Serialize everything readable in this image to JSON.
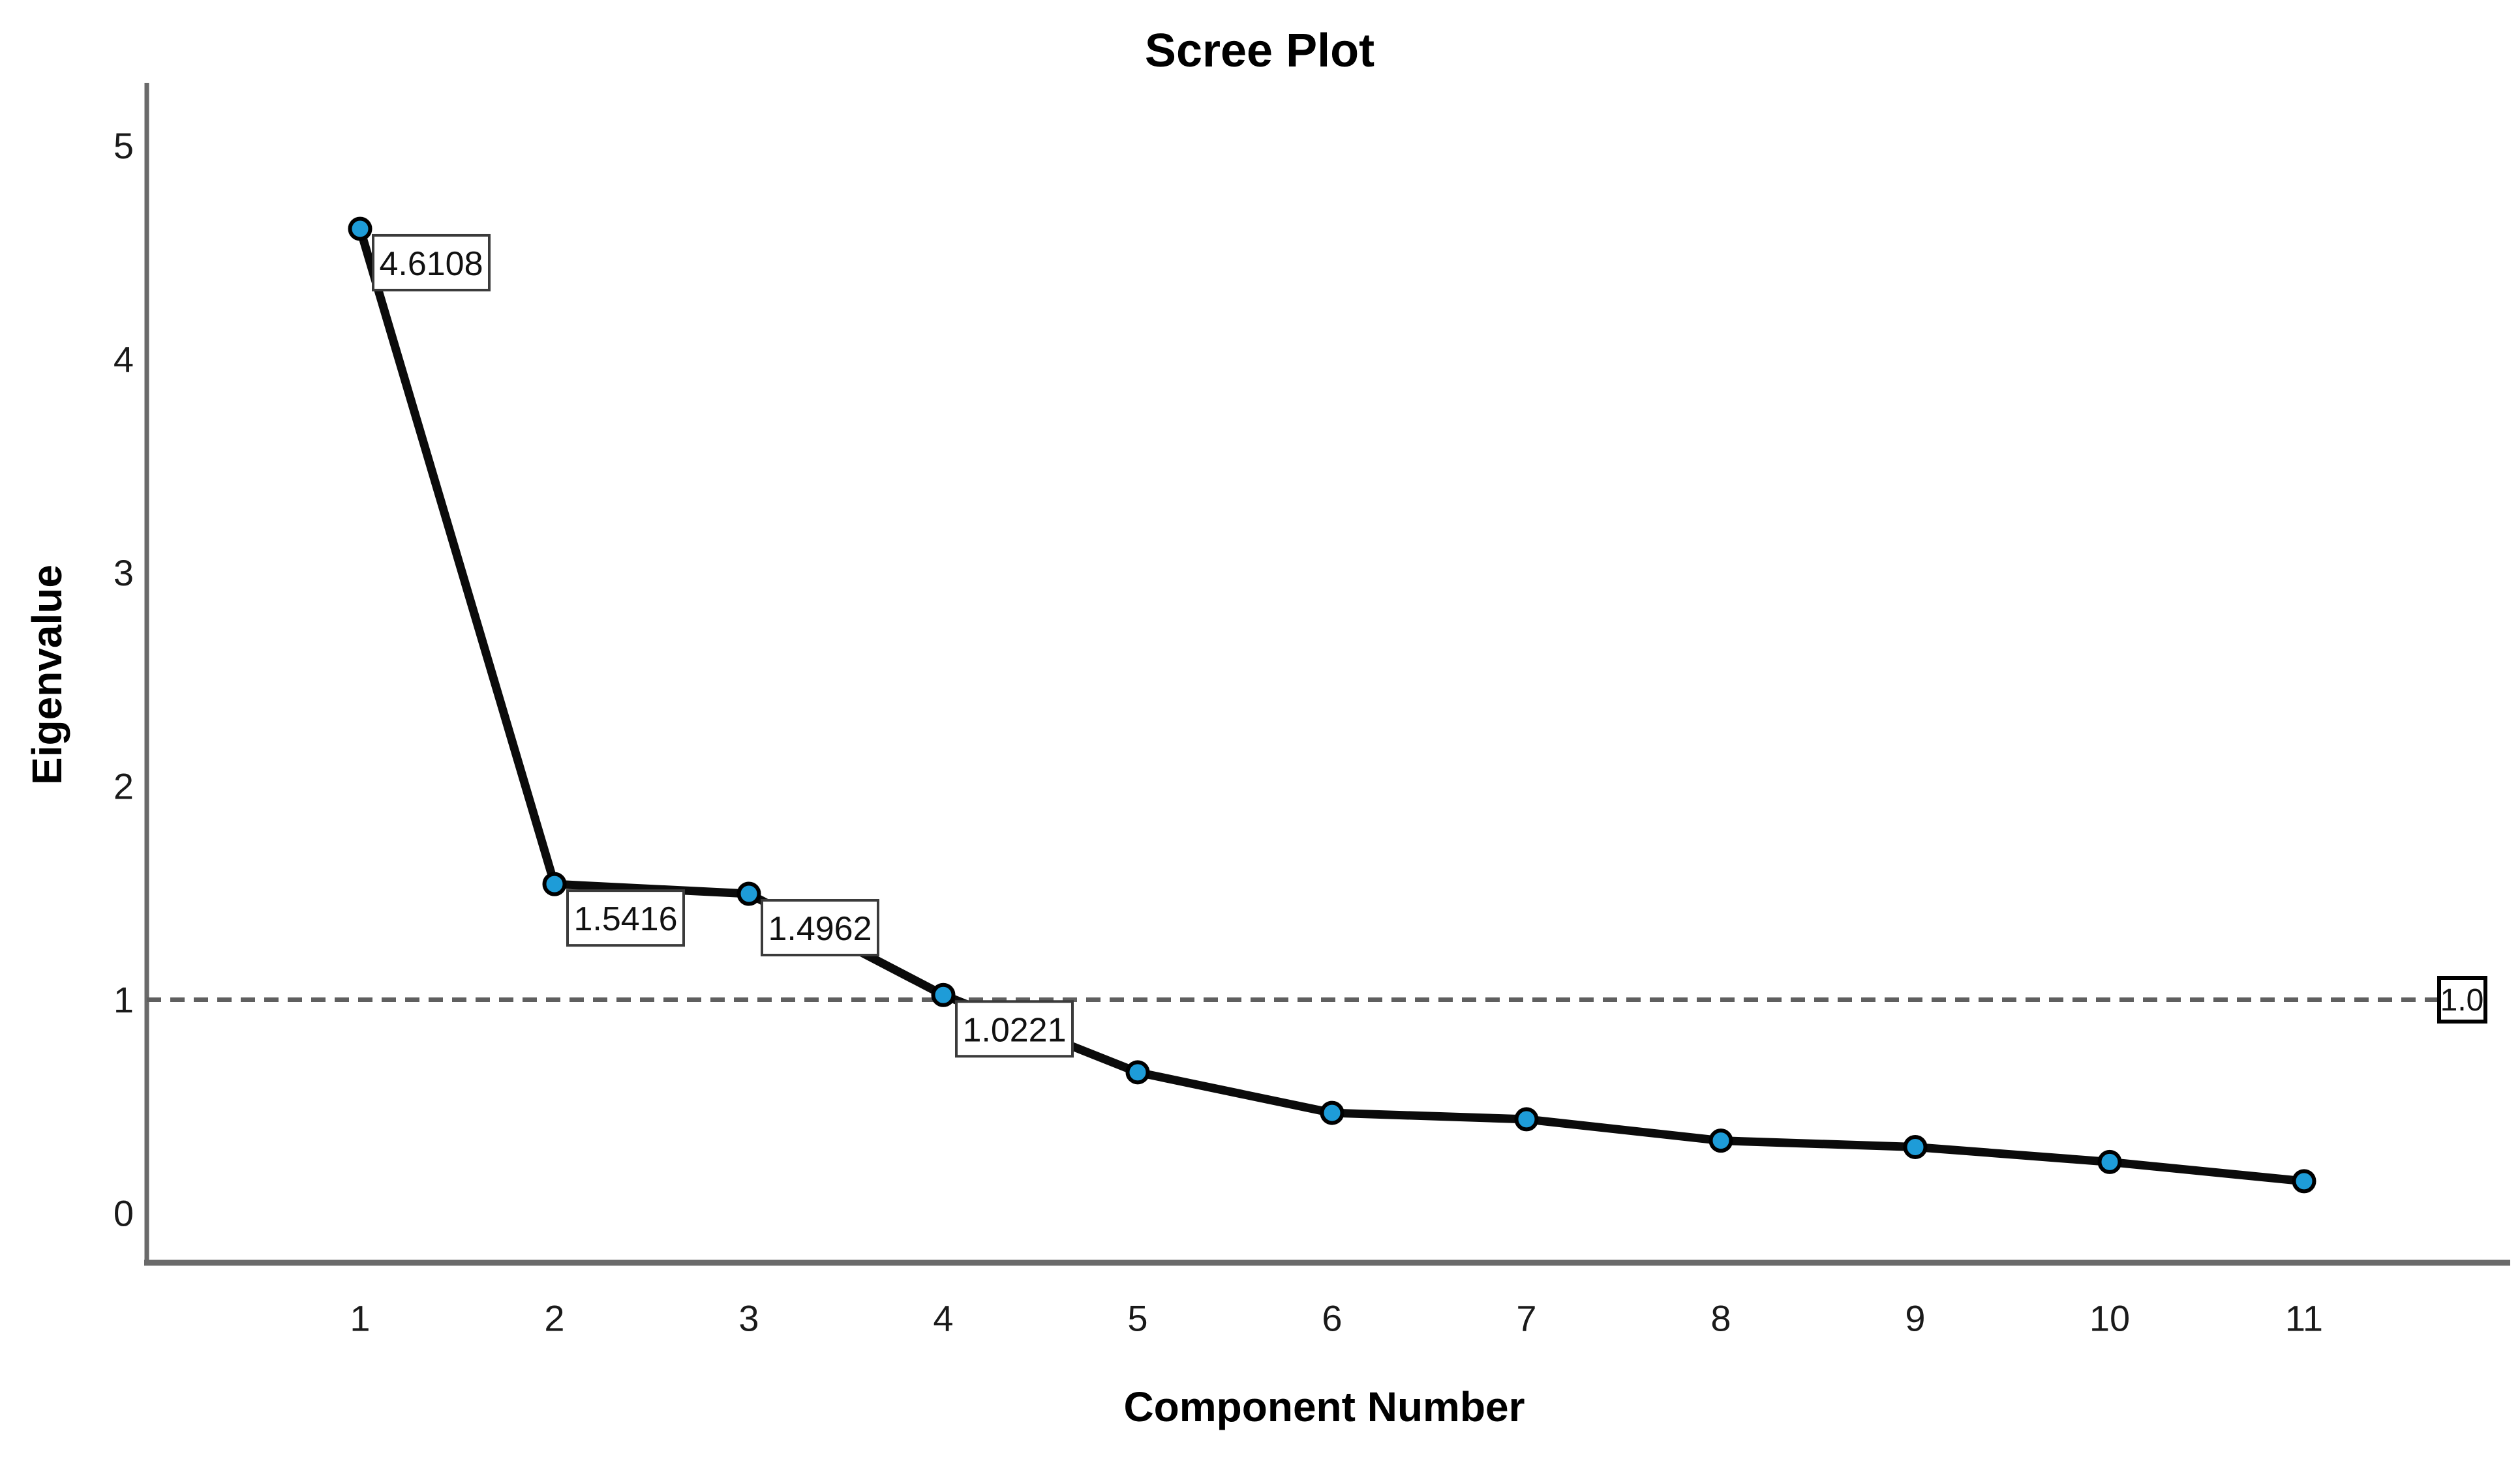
{
  "figure": {
    "title": "Scree Plot",
    "y_axis_label": "Eigenvalue",
    "x_axis_label": "Component Number"
  },
  "chart_data": {
    "type": "line",
    "title": "Scree Plot",
    "xlabel": "Component Number",
    "ylabel": "Eigenvalue",
    "x": [
      1,
      2,
      3,
      4,
      5,
      6,
      7,
      8,
      9,
      10,
      11
    ],
    "series": [
      {
        "name": "Eigenvalue",
        "values": [
          4.6108,
          1.5416,
          1.4962,
          1.0221,
          0.66,
          0.47,
          0.44,
          0.34,
          0.31,
          0.24,
          0.15
        ]
      }
    ],
    "point_labels": [
      {
        "x": 1,
        "text": "4.6108"
      },
      {
        "x": 2,
        "text": "1.5416"
      },
      {
        "x": 3,
        "text": "1.4962"
      },
      {
        "x": 4,
        "text": "1.0221"
      }
    ],
    "y_ticks": [
      0,
      1,
      2,
      3,
      4,
      5
    ],
    "x_tick_labels": [
      "1",
      "2",
      "3",
      "4",
      "5",
      "6",
      "7",
      "8",
      "9",
      "10",
      "11"
    ],
    "ylim": [
      0,
      5.3
    ],
    "grid": false,
    "legend": "none",
    "reference_line": {
      "value": 1.0,
      "label": "1.0",
      "style": "dashed"
    },
    "colors": {
      "line": "#0b0b0b",
      "marker_fill": "#1e9cd8",
      "marker_stroke": "#000000",
      "axis": "#6a6a6a",
      "reference_line": "#5f5f5f",
      "label_box_border": "#3b3b3b",
      "label_box_fill": "#ffffff",
      "tick_text": "#1a1a1a",
      "label_text": "#111111"
    }
  }
}
